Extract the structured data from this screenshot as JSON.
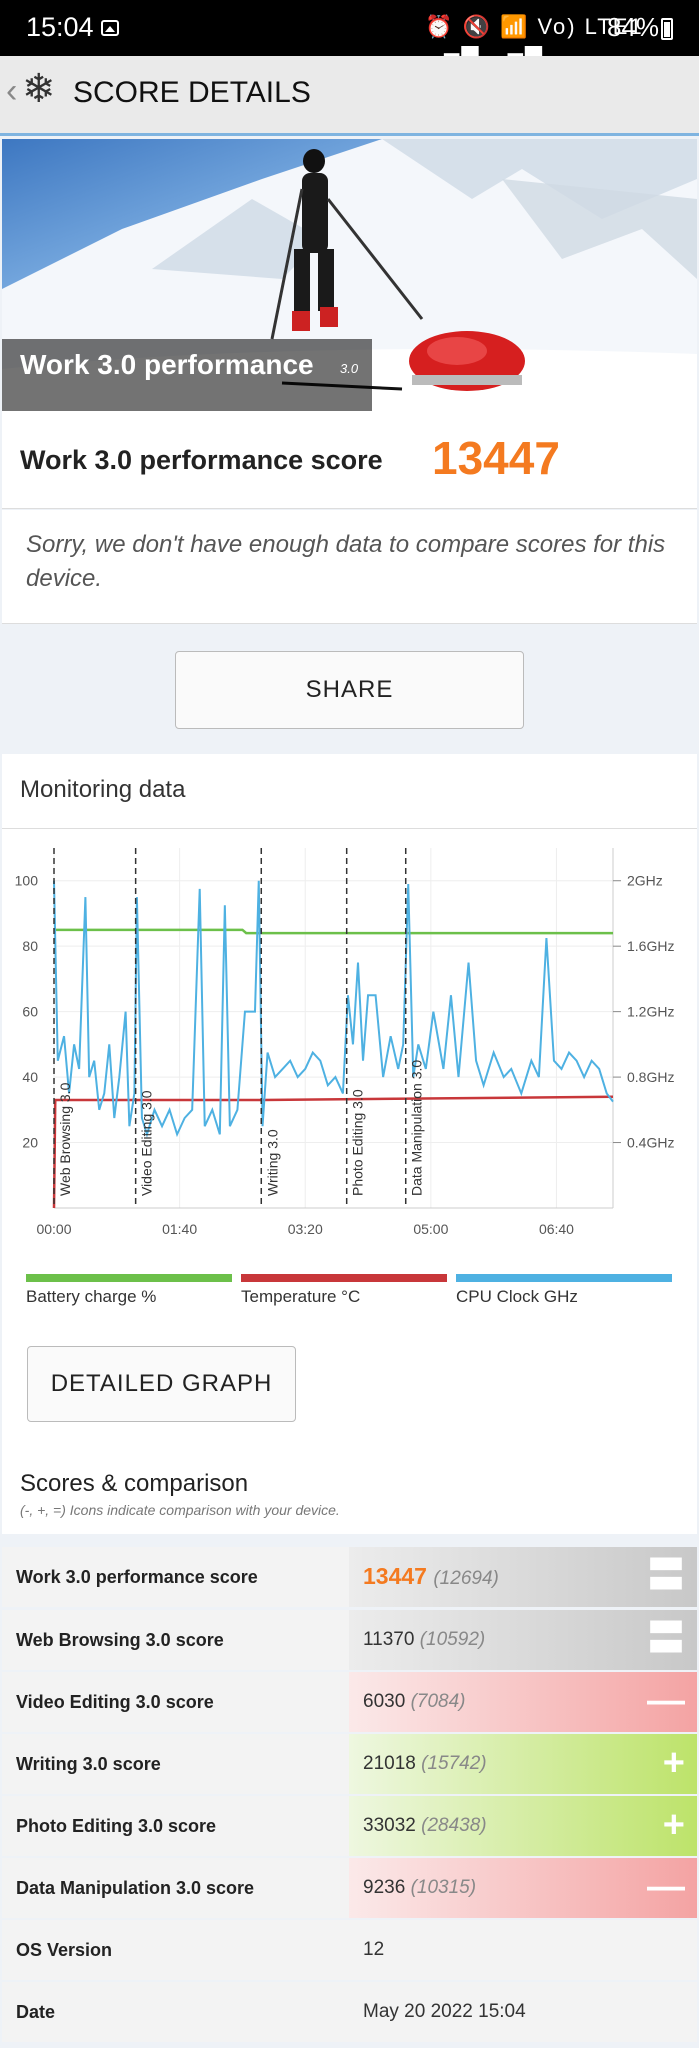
{
  "status_bar": {
    "time": "15:04",
    "icons": "⏰ 🔇 📶 Vo) LTE1 ▂▄▆ ▂▄▆",
    "battery": "84%"
  },
  "app_bar": {
    "back_icon": "‹",
    "logo_icon": "❄",
    "title": "SCORE DETAILS"
  },
  "hero": {
    "banner_text": "Work 3.0 performance",
    "banner_version": "3.0"
  },
  "score": {
    "label": "Work 3.0 performance score",
    "value": "13447"
  },
  "note": "Sorry, we don't have enough data to compare scores for this device.",
  "share_label": "SHARE",
  "monitoring": {
    "heading": "Monitoring data",
    "legend": [
      {
        "label": "Battery charge %",
        "color": "#6cc04a"
      },
      {
        "label": "Temperature °C",
        "color": "#c8373a"
      },
      {
        "label": "CPU Clock GHz",
        "color": "#4eb1e2"
      }
    ]
  },
  "chart_data": {
    "type": "line",
    "y_left_ticks": [
      "20",
      "40",
      "60",
      "80",
      "100"
    ],
    "y_right_ticks": [
      "0.4GHz",
      "0.8GHz",
      "1.2GHz",
      "1.6GHz",
      "2GHz"
    ],
    "x_ticks": [
      "00:00",
      "01:40",
      "03:20",
      "05:00",
      "06:40"
    ],
    "section_markers": [
      {
        "label": "Web Browsing 3.0",
        "t": 0
      },
      {
        "label": "Video Editing 3.0",
        "t": 65
      },
      {
        "label": "Writing 3.0",
        "t": 165
      },
      {
        "label": "Photo Editing 3.0",
        "t": 233
      },
      {
        "label": "Data Manipulation 3.0",
        "t": 280
      }
    ],
    "series": [
      {
        "name": "Battery charge %",
        "points": [
          [
            0,
            85
          ],
          [
            150,
            85
          ],
          [
            153,
            84
          ],
          [
            445,
            84
          ]
        ]
      },
      {
        "name": "Temperature °C",
        "points": [
          [
            0,
            0
          ],
          [
            1,
            33
          ],
          [
            165,
            33
          ],
          [
            166,
            33
          ],
          [
            445,
            34
          ]
        ]
      },
      {
        "name": "CPU Clock GHz",
        "points": [
          [
            0,
            2.0
          ],
          [
            3,
            0.9
          ],
          [
            8,
            1.05
          ],
          [
            12,
            0.7
          ],
          [
            16,
            1.0
          ],
          [
            20,
            0.85
          ],
          [
            25,
            1.9
          ],
          [
            28,
            0.8
          ],
          [
            32,
            0.9
          ],
          [
            36,
            0.6
          ],
          [
            40,
            0.7
          ],
          [
            44,
            1.0
          ],
          [
            48,
            0.55
          ],
          [
            52,
            0.8
          ],
          [
            57,
            1.2
          ],
          [
            60,
            0.5
          ],
          [
            64,
            0.7
          ],
          [
            66,
            1.9
          ],
          [
            70,
            0.55
          ],
          [
            74,
            0.45
          ],
          [
            80,
            0.6
          ],
          [
            86,
            0.5
          ],
          [
            92,
            0.6
          ],
          [
            98,
            0.45
          ],
          [
            104,
            0.55
          ],
          [
            110,
            0.6
          ],
          [
            116,
            1.95
          ],
          [
            120,
            0.5
          ],
          [
            126,
            0.6
          ],
          [
            132,
            0.45
          ],
          [
            136,
            1.85
          ],
          [
            140,
            0.5
          ],
          [
            146,
            0.6
          ],
          [
            152,
            1.2
          ],
          [
            160,
            1.2
          ],
          [
            163,
            2.0
          ],
          [
            166,
            0.5
          ],
          [
            170,
            0.95
          ],
          [
            176,
            0.8
          ],
          [
            182,
            0.85
          ],
          [
            188,
            0.9
          ],
          [
            194,
            0.8
          ],
          [
            200,
            0.85
          ],
          [
            206,
            0.95
          ],
          [
            212,
            0.9
          ],
          [
            218,
            0.75
          ],
          [
            224,
            0.8
          ],
          [
            230,
            0.7
          ],
          [
            234,
            1.3
          ],
          [
            238,
            1.0
          ],
          [
            242,
            1.5
          ],
          [
            246,
            0.9
          ],
          [
            250,
            1.3
          ],
          [
            256,
            1.3
          ],
          [
            262,
            0.8
          ],
          [
            268,
            1.05
          ],
          [
            274,
            0.85
          ],
          [
            278,
            1.0
          ],
          [
            282,
            1.98
          ],
          [
            286,
            0.8
          ],
          [
            290,
            1.0
          ],
          [
            296,
            0.85
          ],
          [
            302,
            1.2
          ],
          [
            310,
            0.85
          ],
          [
            316,
            1.3
          ],
          [
            322,
            0.8
          ],
          [
            330,
            1.5
          ],
          [
            336,
            0.9
          ],
          [
            342,
            0.75
          ],
          [
            350,
            0.95
          ],
          [
            358,
            0.8
          ],
          [
            364,
            0.85
          ],
          [
            372,
            0.7
          ],
          [
            380,
            0.9
          ],
          [
            386,
            0.8
          ],
          [
            392,
            1.65
          ],
          [
            398,
            0.9
          ],
          [
            404,
            0.85
          ],
          [
            410,
            0.95
          ],
          [
            416,
            0.9
          ],
          [
            422,
            0.8
          ],
          [
            428,
            0.9
          ],
          [
            434,
            0.85
          ],
          [
            440,
            0.7
          ],
          [
            445,
            0.65
          ]
        ]
      }
    ]
  },
  "detailed_graph_label": "DETAILED GRAPH",
  "scores": {
    "heading": "Scores & comparison",
    "subtitle": "(-, +, =) Icons indicate comparison with your device.",
    "rows": [
      {
        "label": "Work 3.0 performance score",
        "value": "13447",
        "ref": "(12694)",
        "sym": "〓",
        "kind": "equal"
      },
      {
        "label": "Web Browsing 3.0 score",
        "value": "11370",
        "ref": "(10592)",
        "sym": "〓",
        "kind": "equal"
      },
      {
        "label": "Video Editing 3.0 score",
        "value": "6030",
        "ref": "(7084)",
        "sym": "—",
        "kind": "minus"
      },
      {
        "label": "Writing 3.0 score",
        "value": "21018",
        "ref": "(15742)",
        "sym": "+",
        "kind": "plus"
      },
      {
        "label": "Photo Editing 3.0 score",
        "value": "33032",
        "ref": "(28438)",
        "sym": "+",
        "kind": "plus"
      },
      {
        "label": "Data Manipulation 3.0 score",
        "value": "9236",
        "ref": "(10315)",
        "sym": "—",
        "kind": "minus"
      },
      {
        "label": "OS Version",
        "value": "12",
        "ref": "",
        "sym": "",
        "kind": "info"
      },
      {
        "label": "Date",
        "value": "May 20 2022 15:04",
        "ref": "",
        "sym": "",
        "kind": "info"
      }
    ]
  }
}
